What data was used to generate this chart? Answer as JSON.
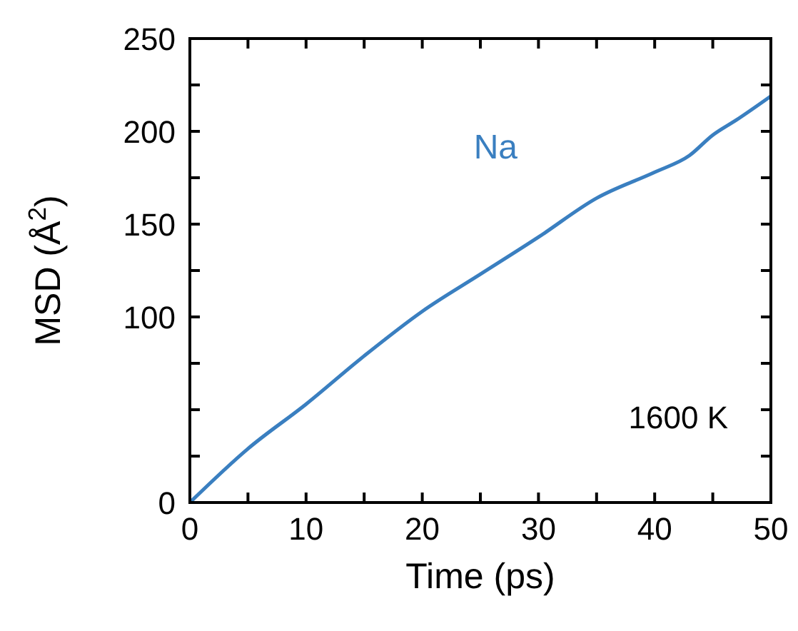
{
  "chart_data": {
    "type": "line",
    "xlabel": "Time (ps)",
    "ylabel": "MSD (Å$^{2}$)",
    "annotations": [
      "1600 K"
    ],
    "xlim": [
      0,
      50
    ],
    "ylim": [
      0,
      250
    ],
    "xticks": [
      0,
      {
        "value": 5,
        "label": null
      },
      10,
      {
        "value": 15,
        "label": null
      },
      20,
      {
        "value": 25,
        "label": null
      },
      30,
      {
        "value": 35,
        "label": null
      },
      40,
      {
        "value": 45,
        "label": null
      },
      50
    ],
    "yticks": [
      0,
      {
        "value": 25,
        "label": null
      },
      {
        "value": 50,
        "label": null
      },
      {
        "value": 75,
        "label": null
      },
      100,
      {
        "value": 125,
        "label": null
      },
      150,
      {
        "value": 175,
        "label": null
      },
      200,
      {
        "value": 225,
        "label": null
      },
      250
    ],
    "x": [
      0,
      5,
      10,
      15,
      20,
      25,
      30,
      35,
      40,
      43,
      45,
      47,
      50
    ],
    "series": [
      {
        "name": "Na",
        "color": "#3a7fc0",
        "values": [
          0,
          29,
          53,
          79,
          103,
          123,
          143,
          164,
          178,
          187,
          198,
          206,
          219
        ]
      }
    ],
    "grid": false
  }
}
